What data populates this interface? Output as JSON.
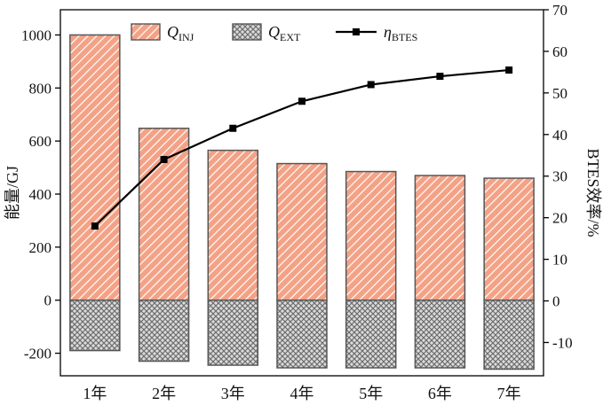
{
  "chart_data": {
    "type": "bar",
    "subtype": "bar-and-line-dual-axis",
    "categories": [
      "1年",
      "2年",
      "3年",
      "4年",
      "5年",
      "6年",
      "7年"
    ],
    "series": [
      {
        "name": "Q_INJ",
        "kind": "bar",
        "axis": "left",
        "values": [
          1000,
          648,
          565,
          515,
          485,
          470,
          460
        ]
      },
      {
        "name": "Q_EXT",
        "kind": "bar",
        "axis": "left",
        "values": [
          -190,
          -230,
          -245,
          -255,
          -255,
          -255,
          -260
        ]
      },
      {
        "name": "η_BTES",
        "kind": "line",
        "axis": "right",
        "values": [
          18,
          34,
          41.5,
          48,
          52,
          54,
          55.5
        ]
      }
    ],
    "left_axis": {
      "label": "能量/GJ",
      "ticks": [
        -200,
        0,
        200,
        400,
        600,
        800,
        1000
      ],
      "lim": [
        -285,
        1095
      ]
    },
    "right_axis": {
      "label": "BTES效率/%",
      "ticks": [
        -10,
        0,
        10,
        20,
        30,
        40,
        50,
        60,
        70
      ],
      "lim": [
        -18,
        70
      ]
    },
    "legend": {
      "position": "top-inside",
      "items": [
        {
          "symbol": "Q",
          "sub": "INJ",
          "swatch": "hatch-inj"
        },
        {
          "symbol": "Q",
          "sub": "EXT",
          "swatch": "hatch-ext"
        },
        {
          "symbol": "η",
          "sub": "BTES",
          "swatch": "line-marker"
        }
      ]
    },
    "grid": "off",
    "title": ""
  },
  "colors": {
    "inj_fill": "#F4A286",
    "inj_hatch": "#FFFFFF",
    "ext_fill": "#DCDCDC",
    "ext_hatch": "#6E6E6E",
    "bar_border": "#565656",
    "line_color": "#000000",
    "marker_color": "#000000",
    "axis_color": "#000000",
    "text_color": "#111111",
    "background": "#FFFFFF"
  }
}
